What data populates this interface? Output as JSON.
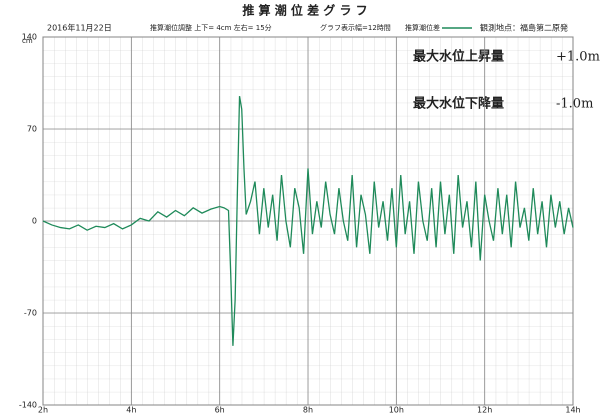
{
  "chart_data": {
    "type": "line",
    "title": "推 算 潮 位 差 グ ラ フ",
    "date": "2016年11月22日",
    "adjustment": "推算潮位調整 上下= 4cm 左右= 15分",
    "display_width": "グラフ表示幅=12時間",
    "station": "観測地点：福島第二原発",
    "ylabel": "cm",
    "annotations": [
      {
        "label": "最大水位上昇量",
        "value": "+1.0m"
      },
      {
        "label": "最大水位下降量",
        "value": "-1.0m"
      }
    ],
    "x": [
      2.0,
      2.2,
      2.4,
      2.6,
      2.8,
      3.0,
      3.2,
      3.4,
      3.6,
      3.8,
      4.0,
      4.2,
      4.4,
      4.6,
      4.8,
      5.0,
      5.2,
      5.4,
      5.6,
      5.8,
      6.0,
      6.1,
      6.2,
      6.25,
      6.3,
      6.35,
      6.4,
      6.45,
      6.5,
      6.55,
      6.6,
      6.7,
      6.8,
      6.9,
      7.0,
      7.1,
      7.2,
      7.3,
      7.4,
      7.5,
      7.6,
      7.7,
      7.8,
      7.9,
      8.0,
      8.1,
      8.2,
      8.3,
      8.4,
      8.5,
      8.6,
      8.7,
      8.8,
      8.9,
      9.0,
      9.1,
      9.2,
      9.3,
      9.4,
      9.5,
      9.6,
      9.7,
      9.8,
      9.9,
      10.0,
      10.1,
      10.2,
      10.3,
      10.4,
      10.5,
      10.6,
      10.7,
      10.8,
      10.9,
      11.0,
      11.1,
      11.2,
      11.3,
      11.4,
      11.5,
      11.6,
      11.7,
      11.8,
      11.9,
      12.0,
      12.1,
      12.2,
      12.3,
      12.4,
      12.5,
      12.6,
      12.7,
      12.8,
      12.9,
      13.0,
      13.1,
      13.2,
      13.3,
      13.4,
      13.5,
      13.6,
      13.7,
      13.8,
      13.9,
      14.0
    ],
    "series": [
      {
        "name": "推算潮位差",
        "color": "#1f8a5a",
        "values": [
          0,
          -3,
          -5,
          -6,
          -3,
          -7,
          -4,
          -5,
          -2,
          -6,
          -3,
          2,
          0,
          7,
          3,
          8,
          4,
          10,
          6,
          9,
          11,
          10,
          8,
          -40,
          -95,
          -60,
          20,
          95,
          85,
          40,
          5,
          15,
          30,
          -10,
          25,
          -5,
          20,
          -15,
          35,
          0,
          -20,
          25,
          10,
          -25,
          40,
          -10,
          15,
          -5,
          30,
          5,
          -10,
          25,
          0,
          -15,
          35,
          -20,
          20,
          5,
          -25,
          30,
          -5,
          15,
          -15,
          25,
          -20,
          35,
          -10,
          15,
          -25,
          30,
          0,
          -15,
          25,
          -20,
          30,
          -10,
          20,
          -25,
          35,
          -5,
          15,
          -20,
          30,
          -30,
          20,
          0,
          -15,
          25,
          -10,
          20,
          -20,
          30,
          -5,
          10,
          -15,
          25,
          -10,
          15,
          -20,
          20,
          -5,
          15,
          -10,
          10,
          -5
        ]
      }
    ],
    "xlim": [
      2,
      14
    ],
    "xticks": [
      {
        "value": 2,
        "label": "2h"
      },
      {
        "value": 4,
        "label": "4h"
      },
      {
        "value": 6,
        "label": "6h"
      },
      {
        "value": 8,
        "label": "8h"
      },
      {
        "value": 10,
        "label": "10h"
      },
      {
        "value": 12,
        "label": "12h"
      },
      {
        "value": 14,
        "label": "14h"
      }
    ],
    "ylim": [
      -140,
      140
    ],
    "yticks": [
      -140,
      -70,
      0,
      70,
      140
    ],
    "grid": true
  }
}
